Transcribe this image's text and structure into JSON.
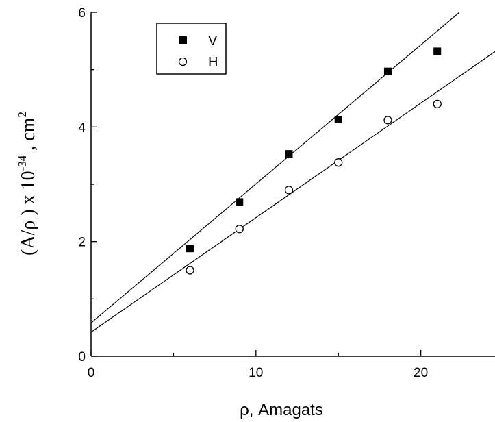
{
  "chart_data": {
    "type": "scatter",
    "title": "",
    "xlabel": "ρ, Amagats",
    "ylabel": {
      "main": "(A/ρ ) x 10",
      "exponent": "-34",
      "unit_sep": " ,  cm",
      "unit_exponent": "2"
    },
    "xlim": [
      0,
      24.5
    ],
    "ylim": [
      0,
      6
    ],
    "x_ticks": [
      0,
      10,
      20
    ],
    "y_ticks": [
      0,
      2,
      4,
      6
    ],
    "grid": false,
    "legend": {
      "position": "top-left",
      "entries": [
        "V",
        "H"
      ]
    },
    "series": [
      {
        "name": "V",
        "marker": "filled-square",
        "x": [
          6,
          9,
          12,
          15,
          18,
          21
        ],
        "y": [
          1.88,
          2.69,
          3.53,
          4.13,
          4.97,
          5.32
        ],
        "fit": {
          "intercept": 0.58,
          "slope": 0.2426
        }
      },
      {
        "name": "H",
        "marker": "open-circle",
        "x": [
          6,
          9,
          12,
          15,
          18,
          21
        ],
        "y": [
          1.5,
          2.22,
          2.9,
          3.38,
          4.12,
          4.4
        ],
        "fit": {
          "intercept": 0.42,
          "slope": 0.1998
        }
      }
    ]
  }
}
